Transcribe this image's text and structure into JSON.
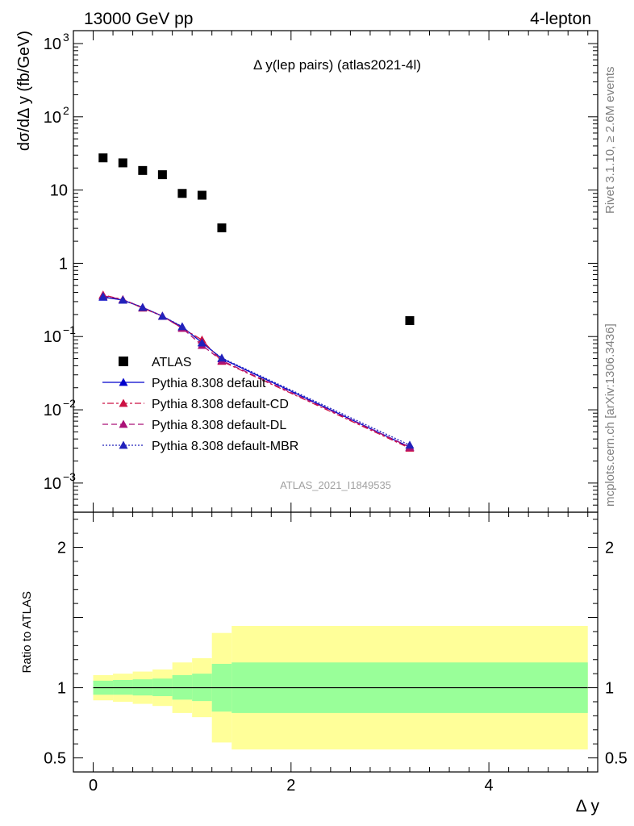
{
  "header": {
    "left": "13000 GeV pp",
    "right": "4-lepton"
  },
  "side_labels": {
    "rivet": "Rivet 3.1.10, ≥ 2.6M events",
    "mcplots": "mcplots.cern.ch [arXiv:1306.3436]"
  },
  "watermark": "ATLAS_2021_I1849535",
  "chart_data": [
    {
      "type": "scatter",
      "title": "Δ y(lep pairs) (atlas2021-4l)",
      "xlabel": "",
      "ylabel": "dσ/dΔ y (fb/GeV)",
      "yscale": "log",
      "ylim": [
        0.0004,
        1500
      ],
      "xlim": [
        -0.2,
        5.1
      ],
      "yticks": [
        {
          "value": 1000,
          "base": "10",
          "exp": "3"
        },
        {
          "value": 100,
          "base": "10",
          "exp": "2"
        },
        {
          "value": 10,
          "base": "10",
          "exp": ""
        },
        {
          "value": 1,
          "base": "1",
          "exp": ""
        },
        {
          "value": 0.1,
          "base": "10",
          "exp": "−1"
        },
        {
          "value": 0.01,
          "base": "10",
          "exp": "−2"
        },
        {
          "value": 0.001,
          "base": "10",
          "exp": "−3"
        }
      ],
      "series": [
        {
          "name": "ATLAS",
          "marker": "square",
          "color": "#000000",
          "x": [
            0.1,
            0.3,
            0.5,
            0.7,
            0.9,
            1.1,
            1.3,
            3.2
          ],
          "y": [
            27.5,
            23.5,
            18.5,
            16.2,
            9.0,
            8.5,
            3.05,
            0.165
          ]
        },
        {
          "name": "Pythia 8.308 default",
          "marker": "triangle",
          "color": "#0000cc",
          "dash": "",
          "x": [
            0.1,
            0.3,
            0.5,
            0.7,
            0.9,
            1.1,
            1.3,
            3.2
          ],
          "y": [
            0.345,
            0.315,
            0.25,
            0.19,
            0.135,
            0.083,
            0.05,
            0.0031
          ]
        },
        {
          "name": "Pythia 8.308 default-CD",
          "marker": "triangle",
          "color": "#cc1144",
          "dash": "3,3,8,3",
          "x": [
            0.1,
            0.3,
            0.5,
            0.7,
            0.9,
            1.1,
            1.3,
            3.2
          ],
          "y": [
            0.37,
            0.32,
            0.245,
            0.19,
            0.13,
            0.09,
            0.046,
            0.003
          ]
        },
        {
          "name": "Pythia 8.308 default-DL",
          "marker": "triangle",
          "color": "#aa1177",
          "dash": "7,4",
          "x": [
            0.1,
            0.3,
            0.5,
            0.7,
            0.9,
            1.1,
            1.3,
            3.2
          ],
          "y": [
            0.36,
            0.32,
            0.25,
            0.19,
            0.13,
            0.076,
            0.047,
            0.0031
          ]
        },
        {
          "name": "Pythia 8.308 default-MBR",
          "marker": "triangle",
          "color": "#2222bb",
          "dash": "2,2",
          "x": [
            0.1,
            0.3,
            0.5,
            0.7,
            0.9,
            1.1,
            1.3,
            3.2
          ],
          "y": [
            0.35,
            0.315,
            0.25,
            0.19,
            0.137,
            0.082,
            0.051,
            0.0033
          ]
        }
      ]
    },
    {
      "type": "area",
      "title": "",
      "xlabel": "Δ y",
      "ylabel": "Ratio to ATLAS",
      "xlim": [
        -0.2,
        5.1
      ],
      "ylim": [
        0.4,
        2.25
      ],
      "xticks": [
        0,
        2,
        4
      ],
      "yticks": [
        0.5,
        1,
        2
      ],
      "reference": 1,
      "bins": [
        {
          "lo": 0.0,
          "hi": 0.2,
          "inner": [
            0.95,
            1.05
          ],
          "outer": [
            0.91,
            1.09
          ]
        },
        {
          "lo": 0.2,
          "hi": 0.4,
          "inner": [
            0.95,
            1.055
          ],
          "outer": [
            0.9,
            1.1
          ]
        },
        {
          "lo": 0.4,
          "hi": 0.6,
          "inner": [
            0.945,
            1.06
          ],
          "outer": [
            0.885,
            1.115
          ]
        },
        {
          "lo": 0.6,
          "hi": 0.8,
          "inner": [
            0.94,
            1.065
          ],
          "outer": [
            0.87,
            1.13
          ]
        },
        {
          "lo": 0.8,
          "hi": 1.0,
          "inner": [
            0.915,
            1.09
          ],
          "outer": [
            0.82,
            1.18
          ]
        },
        {
          "lo": 1.0,
          "hi": 1.2,
          "inner": [
            0.905,
            1.1
          ],
          "outer": [
            0.79,
            1.21
          ]
        },
        {
          "lo": 1.2,
          "hi": 1.4,
          "inner": [
            0.83,
            1.17
          ],
          "outer": [
            0.61,
            1.39
          ]
        },
        {
          "lo": 1.4,
          "hi": 5.0,
          "inner": [
            0.82,
            1.18
          ],
          "outer": [
            0.56,
            1.44
          ]
        }
      ],
      "colors": {
        "inner": "#99ff99",
        "outer": "#ffff99"
      }
    }
  ]
}
